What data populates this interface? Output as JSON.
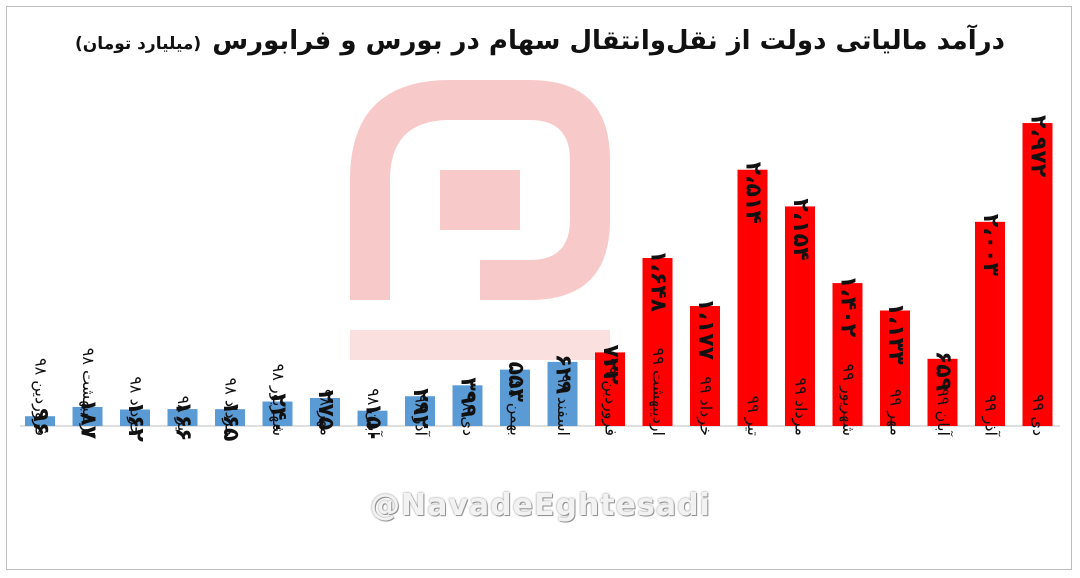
{
  "title": "درآمد مالیاتی دولت از نقل‌وانتقال سهام در بورس و فرابورس",
  "subtitle": "(میلیارد تومان)",
  "watermark_handle": "@NavadeEghtesadi",
  "colors": {
    "year98": "#5b9bd5",
    "year99": "#ff0000",
    "watermark": "#f7c9c9"
  },
  "chart_data": {
    "type": "bar",
    "title": "درآمد مالیاتی دولت از نقل‌وانتقال سهام در بورس و فرابورس",
    "ylabel": "(میلیارد تومان)",
    "ylim": [
      0,
      3100
    ],
    "grid": false,
    "categories": [
      "فروردین ۹۸",
      "اردیبهشت ۹۸",
      "خرداد ۹۸",
      "تیر ۹۸",
      "مرداد ۹۸",
      "شهریور ۹۸",
      "مهر ۹۸",
      "آبان ۹۸",
      "آذر ۹۸",
      "دی ۹۸",
      "بهمن ۹۸",
      "اسفند ۹۸",
      "فروردین ۹۹",
      "اردیبهشت ۹۹",
      "خرداد ۹۹",
      "تیر ۹۹",
      "مرداد ۹۹",
      "شهریور ۹۹",
      "مهر ۹۹",
      "آبان ۹۹",
      "آذر ۹۹",
      "دی ۹۹"
    ],
    "values": [
      96,
      187,
      162,
      166,
      165,
      240,
      275,
      150,
      292,
      399,
      553,
      629,
      722,
      1648,
      1177,
      2514,
      2154,
      1402,
      1133,
      659,
      2003,
      2972
    ],
    "labels": [
      "۹۶",
      "۱۸۷",
      "۱۶۲",
      "۱۶۶",
      "۱۶۵",
      "۲۴۰",
      "۲۷۵",
      "۱۵۰",
      "۲۹۲",
      "۳۹۹",
      "۵۵۳",
      "۶۲۹",
      "۷۲۲",
      "۱،۶۴۸",
      "۱،۱۷۷",
      "۲،۵۱۴",
      "۲،۱۵۴",
      "۱،۴۰۲",
      "۱،۱۳۳",
      "۶۵۹",
      "۲،۰۰۳",
      "۲،۹۷۲"
    ],
    "bar_colors": [
      "year98",
      "year98",
      "year98",
      "year98",
      "year98",
      "year98",
      "year98",
      "year98",
      "year98",
      "year98",
      "year98",
      "year98",
      "year99",
      "year99",
      "year99",
      "year99",
      "year99",
      "year99",
      "year99",
      "year99",
      "year99",
      "year99"
    ]
  }
}
